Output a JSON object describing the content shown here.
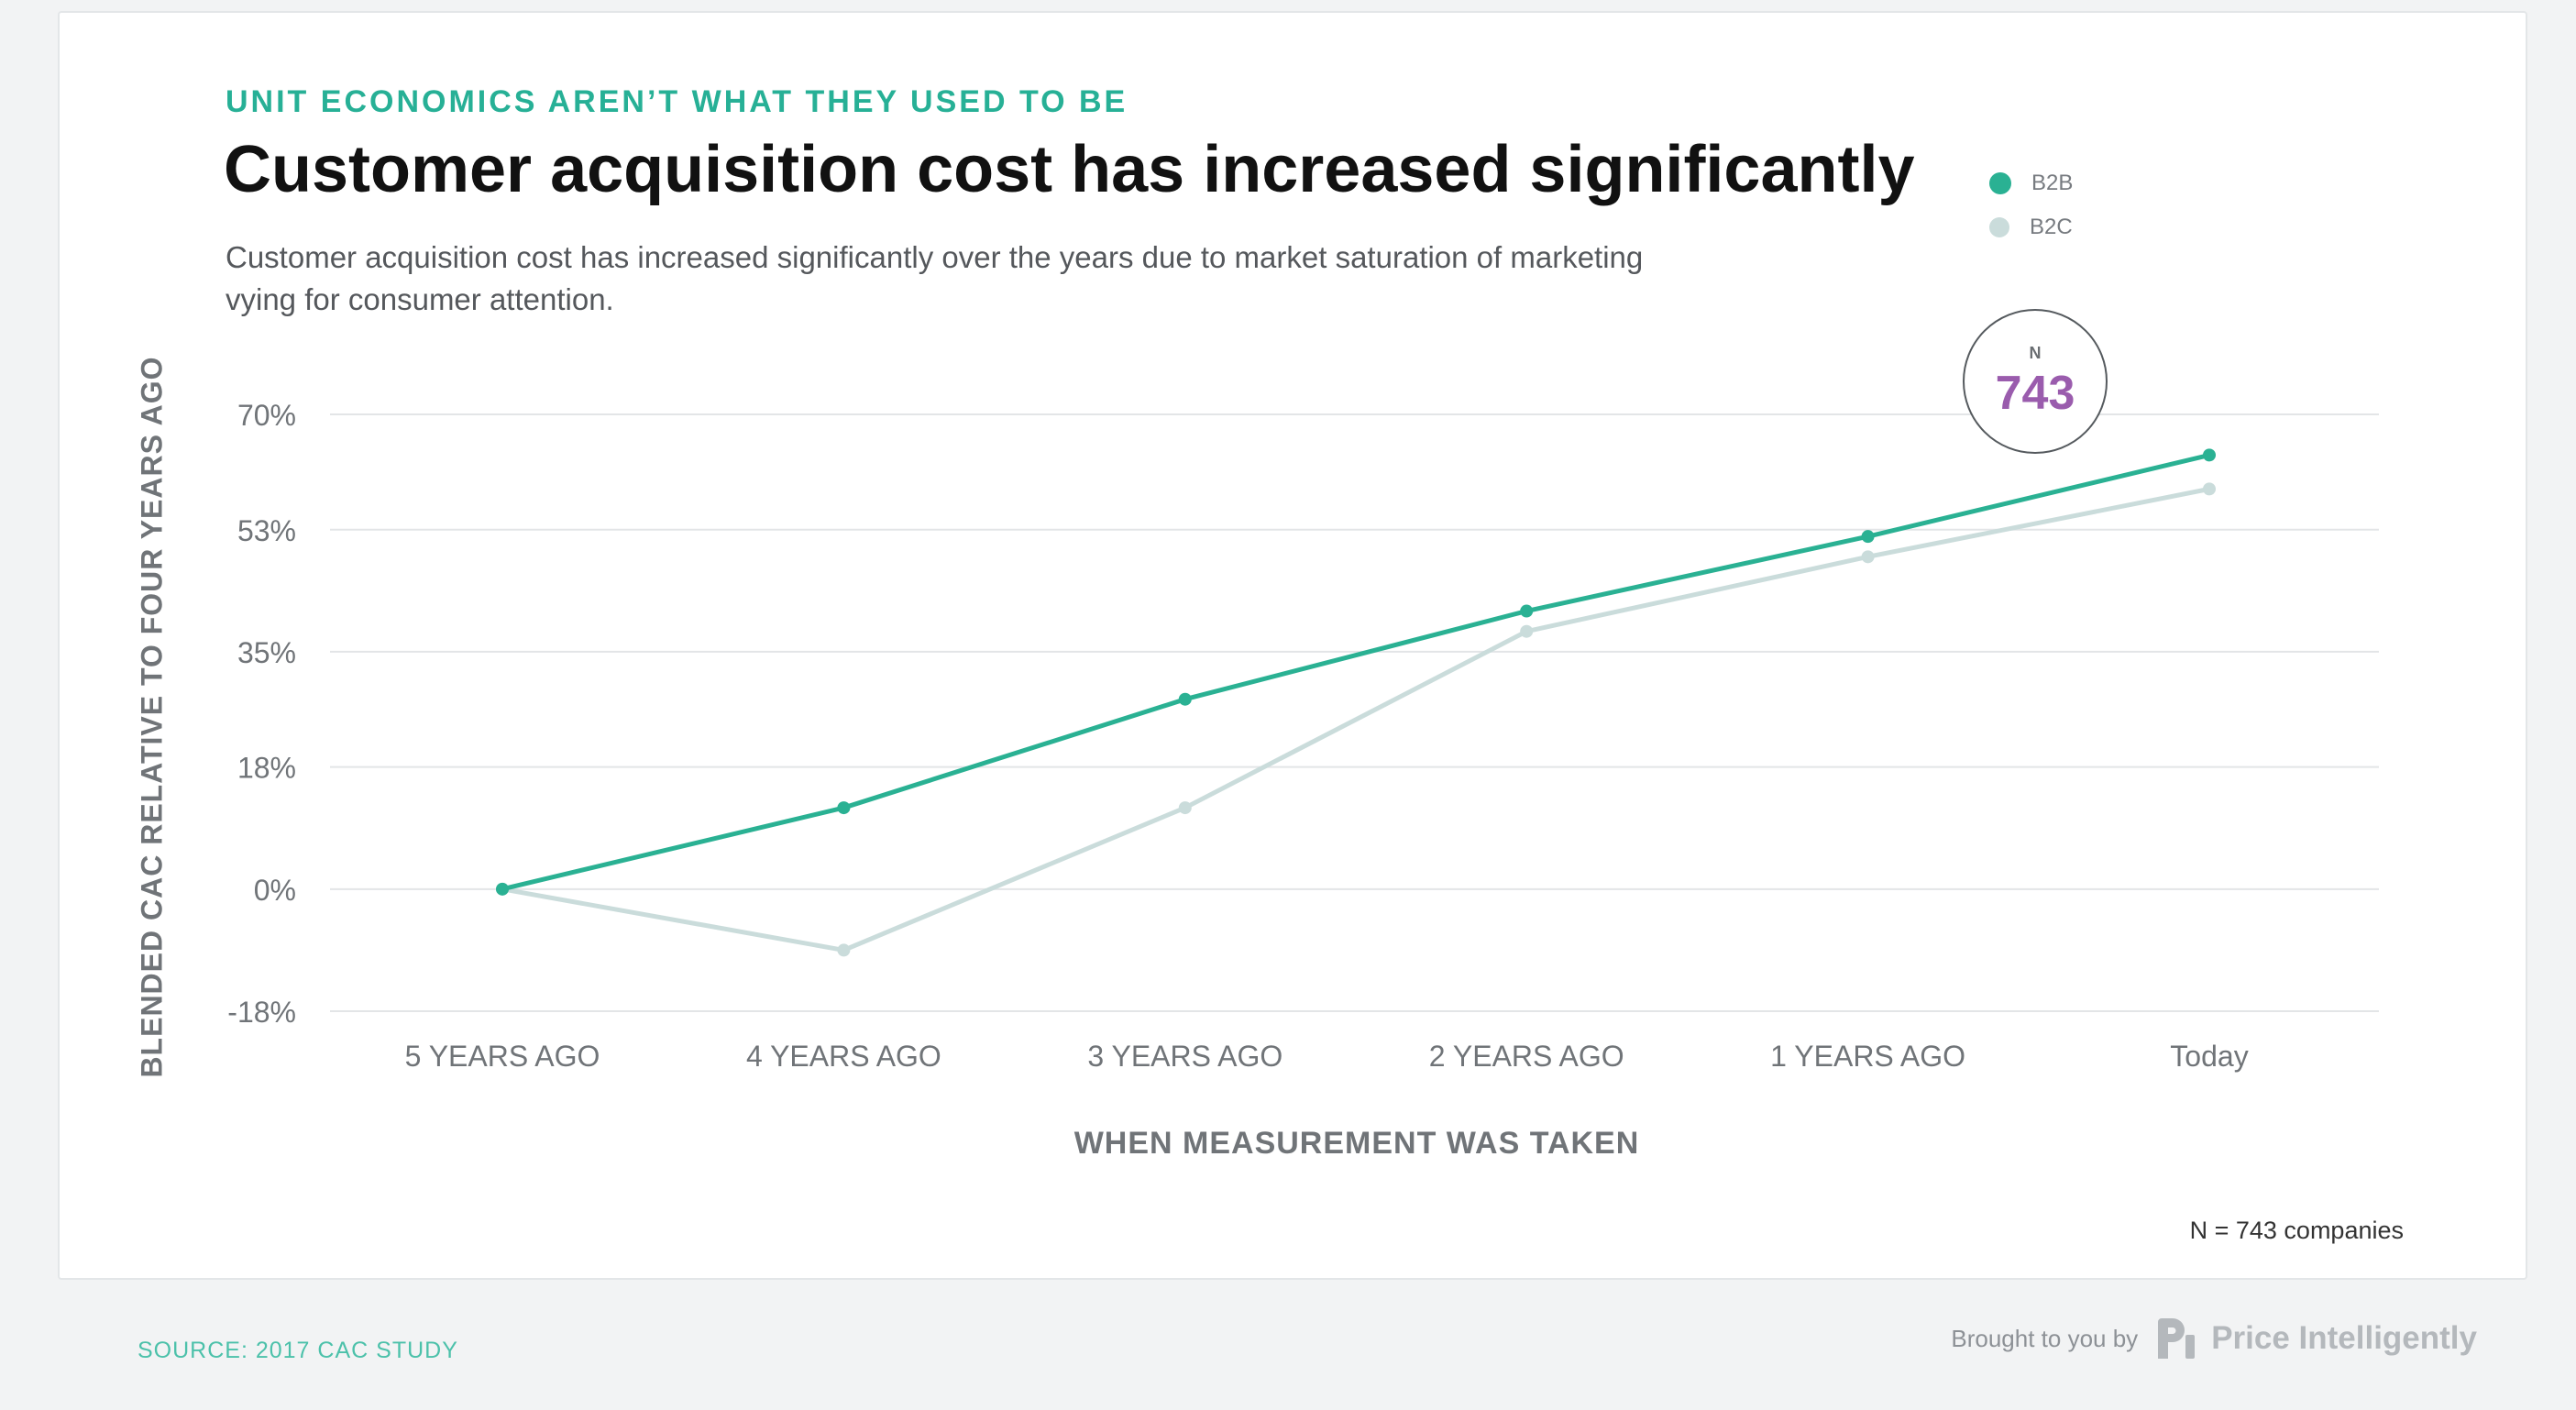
{
  "header": {
    "eyebrow": "UNIT ECONOMICS AREN’T WHAT THEY USED TO BE",
    "title": "Customer acquisition cost has increased significantly",
    "subtitle": "Customer acquisition cost has increased significantly over the years due to market saturation of marketing vying for consumer attention."
  },
  "badge": {
    "label": "N",
    "value": "743"
  },
  "note": "N = 743 companies",
  "footer": {
    "source": "SOURCE: 2017 CAC STUDY",
    "brought_by": "Brought to you by",
    "brand": "Price Intelligently"
  },
  "colors": {
    "b2b": "#2ab193",
    "b2c": "#cadcdb",
    "accent": "#27b096",
    "badge_value": "#9a5cad"
  },
  "chart_data": {
    "type": "line",
    "title": "Customer acquisition cost has increased significantly",
    "xlabel": "WHEN MEASUREMENT WAS TAKEN",
    "ylabel": "BLENDED CAC RELATIVE TO FOUR YEARS AGO",
    "categories": [
      "5 YEARS AGO",
      "4 YEARS AGO",
      "3 YEARS AGO",
      "2 YEARS AGO",
      "1 YEARS AGO",
      "Today"
    ],
    "ylim": [
      -18,
      70
    ],
    "yticks": [
      70,
      53,
      35,
      18,
      0,
      -18
    ],
    "ytick_labels": [
      "70%",
      "53%",
      "35%",
      "18%",
      "0%",
      "-18%"
    ],
    "grid": true,
    "legend": "top-right",
    "series": [
      {
        "name": "B2B",
        "color": "#2ab193",
        "values": [
          0,
          12,
          28,
          41,
          52,
          64
        ]
      },
      {
        "name": "B2C",
        "color": "#cadcdb",
        "values": [
          0,
          -9,
          12,
          38,
          49,
          59
        ]
      }
    ]
  }
}
